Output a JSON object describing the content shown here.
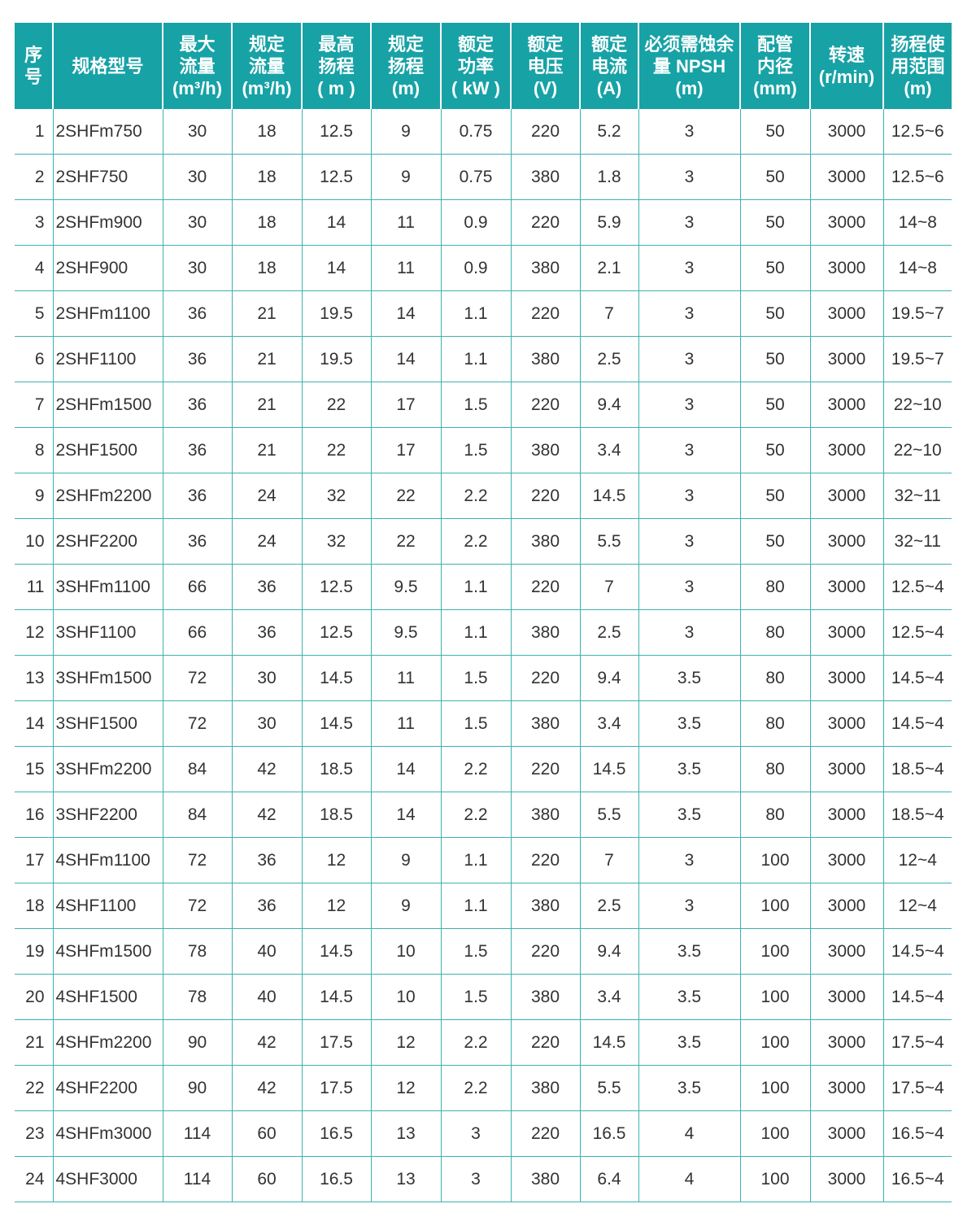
{
  "header_color": "#17a2a6",
  "headers": [
    [
      "序",
      "号"
    ],
    [
      "规格型号"
    ],
    [
      "最大",
      "流量",
      "(m³/h)"
    ],
    [
      "规定",
      "流量",
      "(m³/h)"
    ],
    [
      "最高",
      "扬程",
      "( m )"
    ],
    [
      "规定",
      "扬程",
      "(m)"
    ],
    [
      "额定",
      "功率",
      "( kW )"
    ],
    [
      "额定",
      "电压",
      "(V)"
    ],
    [
      "额定",
      "电流",
      "(A)"
    ],
    [
      "必须需蚀余",
      "量 NPSH",
      "(m)"
    ],
    [
      "配管",
      "内径",
      "(mm)"
    ],
    [
      "转速",
      "(r/min)"
    ],
    [
      "扬程使",
      "用范围",
      "(m)"
    ]
  ],
  "rows": [
    [
      "1",
      "2SHFm750",
      "30",
      "18",
      "12.5",
      "9",
      "0.75",
      "220",
      "5.2",
      "3",
      "50",
      "3000",
      "12.5~6"
    ],
    [
      "2",
      "2SHF750",
      "30",
      "18",
      "12.5",
      "9",
      "0.75",
      "380",
      "1.8",
      "3",
      "50",
      "3000",
      "12.5~6"
    ],
    [
      "3",
      "2SHFm900",
      "30",
      "18",
      "14",
      "11",
      "0.9",
      "220",
      "5.9",
      "3",
      "50",
      "3000",
      "14~8"
    ],
    [
      "4",
      "2SHF900",
      "30",
      "18",
      "14",
      "11",
      "0.9",
      "380",
      "2.1",
      "3",
      "50",
      "3000",
      "14~8"
    ],
    [
      "5",
      "2SHFm1100",
      "36",
      "21",
      "19.5",
      "14",
      "1.1",
      "220",
      "7",
      "3",
      "50",
      "3000",
      "19.5~7"
    ],
    [
      "6",
      "2SHF1100",
      "36",
      "21",
      "19.5",
      "14",
      "1.1",
      "380",
      "2.5",
      "3",
      "50",
      "3000",
      "19.5~7"
    ],
    [
      "7",
      "2SHFm1500",
      "36",
      "21",
      "22",
      "17",
      "1.5",
      "220",
      "9.4",
      "3",
      "50",
      "3000",
      "22~10"
    ],
    [
      "8",
      "2SHF1500",
      "36",
      "21",
      "22",
      "17",
      "1.5",
      "380",
      "3.4",
      "3",
      "50",
      "3000",
      "22~10"
    ],
    [
      "9",
      "2SHFm2200",
      "36",
      "24",
      "32",
      "22",
      "2.2",
      "220",
      "14.5",
      "3",
      "50",
      "3000",
      "32~11"
    ],
    [
      "10",
      "2SHF2200",
      "36",
      "24",
      "32",
      "22",
      "2.2",
      "380",
      "5.5",
      "3",
      "50",
      "3000",
      "32~11"
    ],
    [
      "11",
      "3SHFm1100",
      "66",
      "36",
      "12.5",
      "9.5",
      "1.1",
      "220",
      "7",
      "3",
      "80",
      "3000",
      "12.5~4"
    ],
    [
      "12",
      "3SHF1100",
      "66",
      "36",
      "12.5",
      "9.5",
      "1.1",
      "380",
      "2.5",
      "3",
      "80",
      "3000",
      "12.5~4"
    ],
    [
      "13",
      "3SHFm1500",
      "72",
      "30",
      "14.5",
      "11",
      "1.5",
      "220",
      "9.4",
      "3.5",
      "80",
      "3000",
      "14.5~4"
    ],
    [
      "14",
      "3SHF1500",
      "72",
      "30",
      "14.5",
      "11",
      "1.5",
      "380",
      "3.4",
      "3.5",
      "80",
      "3000",
      "14.5~4"
    ],
    [
      "15",
      "3SHFm2200",
      "84",
      "42",
      "18.5",
      "14",
      "2.2",
      "220",
      "14.5",
      "3.5",
      "80",
      "3000",
      "18.5~4"
    ],
    [
      "16",
      "3SHF2200",
      "84",
      "42",
      "18.5",
      "14",
      "2.2",
      "380",
      "5.5",
      "3.5",
      "80",
      "3000",
      "18.5~4"
    ],
    [
      "17",
      "4SHFm1100",
      "72",
      "36",
      "12",
      "9",
      "1.1",
      "220",
      "7",
      "3",
      "100",
      "3000",
      "12~4"
    ],
    [
      "18",
      "4SHF1100",
      "72",
      "36",
      "12",
      "9",
      "1.1",
      "380",
      "2.5",
      "3",
      "100",
      "3000",
      "12~4"
    ],
    [
      "19",
      "4SHFm1500",
      "78",
      "40",
      "14.5",
      "10",
      "1.5",
      "220",
      "9.4",
      "3.5",
      "100",
      "3000",
      "14.5~4"
    ],
    [
      "20",
      "4SHF1500",
      "78",
      "40",
      "14.5",
      "10",
      "1.5",
      "380",
      "3.4",
      "3.5",
      "100",
      "3000",
      "14.5~4"
    ],
    [
      "21",
      "4SHFm2200",
      "90",
      "42",
      "17.5",
      "12",
      "2.2",
      "220",
      "14.5",
      "3.5",
      "100",
      "3000",
      "17.5~4"
    ],
    [
      "22",
      "4SHF2200",
      "90",
      "42",
      "17.5",
      "12",
      "2.2",
      "380",
      "5.5",
      "3.5",
      "100",
      "3000",
      "17.5~4"
    ],
    [
      "23",
      "4SHFm3000",
      "114",
      "60",
      "16.5",
      "13",
      "3",
      "220",
      "16.5",
      "4",
      "100",
      "3000",
      "16.5~4"
    ],
    [
      "24",
      "4SHF3000",
      "114",
      "60",
      "16.5",
      "13",
      "3",
      "380",
      "6.4",
      "4",
      "100",
      "3000",
      "16.5~4"
    ]
  ]
}
